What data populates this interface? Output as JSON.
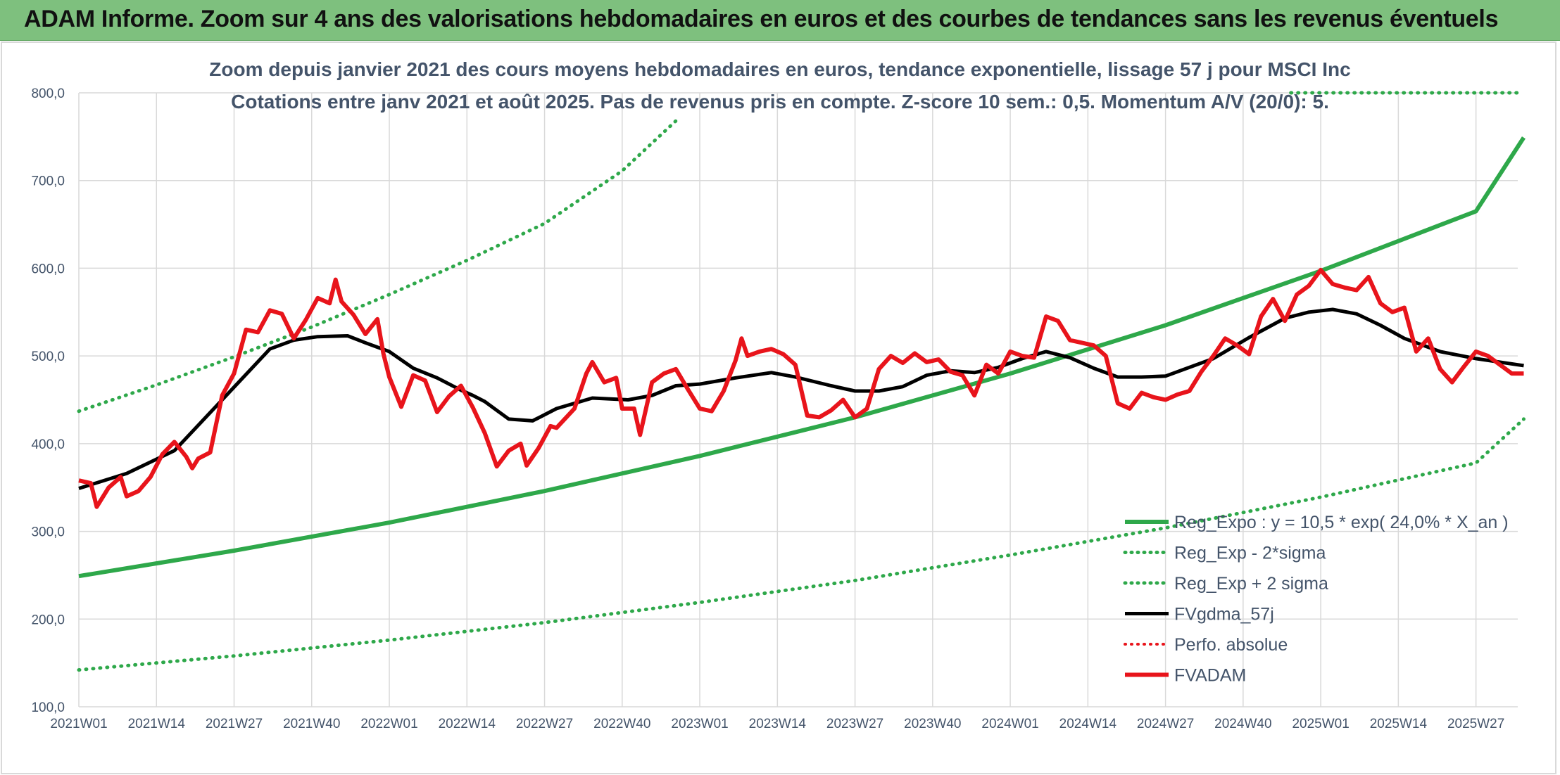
{
  "banner": {
    "title": "ADAM Informe. Zoom sur 4 ans des valorisations hebdomadaires en euros et des courbes de tendances sans les revenus éventuels"
  },
  "chart_data": {
    "type": "line",
    "title": "Zoom depuis janvier 2021 des cours moyens hebdomadaires en euros, tendance exponentielle, lissage 57 j pour MSCI Inc",
    "subtitle": "Cotations entre janv 2021 et août 2025. Pas de revenus pris en compte. Z-score 10 sem.: 0,5. Momentum A/V (20/0): 5.",
    "ylim": [
      100,
      800
    ],
    "y_ticks": [
      "800,0",
      "700,0",
      "600,0",
      "500,0",
      "400,0",
      "300,0",
      "200,0",
      "100,0"
    ],
    "x_ticks": [
      "2021W01",
      "2021W14",
      "2021W27",
      "2021W40",
      "2022W01",
      "2022W14",
      "2022W27",
      "2022W40",
      "2023W01",
      "2023W14",
      "2023W27",
      "2023W40",
      "2024W01",
      "2024W14",
      "2024W27",
      "2024W40",
      "2025W01",
      "2025W14",
      "2025W27"
    ],
    "legend_position": "bottom-right",
    "grid": true,
    "series": [
      {
        "name": "Reg_Expo : y = 10,5 * exp( 24,0% *  X_an )",
        "color": "#2ea84a",
        "style": "solid",
        "x": [
          0,
          26,
          52,
          78,
          104,
          130,
          156,
          182,
          208,
          234,
          242
        ],
        "y": [
          249,
          278,
          310,
          346,
          386,
          430,
          480,
          535,
          597,
          665,
          749
        ]
      },
      {
        "name": "Reg_Exp - 2*sigma",
        "color": "#2ea84a",
        "style": "dotted",
        "x": [
          0,
          26,
          52,
          78,
          104,
          130,
          156,
          182,
          208,
          234,
          242
        ],
        "y": [
          142,
          158,
          176,
          196,
          219,
          244,
          273,
          304,
          339,
          378,
          428
        ]
      },
      {
        "name": "Reg_Exp + 2 sigma",
        "color": "#2ea84a",
        "style": "dotted",
        "x": [
          0,
          13,
          26,
          39,
          52,
          65,
          78,
          91,
          100
        ],
        "y": [
          437,
          467,
          499,
          533,
          570,
          609,
          651,
          711,
          768
        ]
      },
      {
        "name": "FVgdma_57j",
        "color": "#000000",
        "style": "solid",
        "x": [
          0,
          8,
          16,
          24,
          32,
          36,
          40,
          45,
          48,
          52,
          56,
          60,
          64,
          66,
          68,
          70,
          72,
          76,
          80,
          86,
          92,
          96,
          100,
          104,
          110,
          116,
          120,
          126,
          130,
          134,
          138,
          142,
          146,
          150,
          154,
          158,
          162,
          166,
          170,
          174,
          178,
          182,
          190,
          196,
          202,
          206,
          210,
          214,
          218,
          222,
          228,
          234,
          242
        ],
        "y": [
          349,
          366,
          392,
          450,
          508,
          518,
          522,
          523,
          515,
          505,
          486,
          475,
          461,
          455,
          448,
          438,
          428,
          426,
          440,
          452,
          450,
          455,
          466,
          468,
          475,
          481,
          476,
          466,
          460,
          460,
          465,
          478,
          483,
          481,
          487,
          497,
          505,
          498,
          486,
          476,
          476,
          477,
          497,
          521,
          543,
          550,
          553,
          548,
          535,
          520,
          505,
          497,
          489
        ]
      },
      {
        "name": "Perfo. absolue",
        "color": "#e8141b",
        "style": "dotted",
        "x": [],
        "y": []
      },
      {
        "name": "FVADAM",
        "color": "#e8141b",
        "style": "solid",
        "x": [
          0,
          2,
          3,
          5,
          7,
          8,
          10,
          12,
          14,
          16,
          18,
          19,
          20,
          22,
          24,
          26,
          28,
          30,
          32,
          34,
          36,
          38,
          40,
          42,
          43,
          44,
          46,
          48,
          50,
          51,
          52,
          54,
          56,
          58,
          60,
          62,
          64,
          66,
          68,
          70,
          72,
          74,
          75,
          77,
          79,
          80,
          83,
          85,
          86,
          88,
          90,
          91,
          93,
          94,
          96,
          98,
          100,
          102,
          104,
          106,
          108,
          110,
          111,
          112,
          114,
          116,
          118,
          120,
          122,
          124,
          126,
          128,
          130,
          132,
          134,
          136,
          138,
          140,
          142,
          144,
          146,
          148,
          150,
          152,
          154,
          156,
          158,
          160,
          162,
          164,
          166,
          168,
          170,
          172,
          174,
          176,
          178,
          180,
          182,
          184,
          186,
          188,
          190,
          192,
          194,
          196,
          198,
          200,
          202,
          204,
          206,
          208,
          210,
          212,
          214,
          216,
          218,
          220,
          222,
          224,
          226,
          228,
          230,
          232,
          234,
          236,
          238,
          240,
          242
        ],
        "y": [
          358,
          355,
          328,
          350,
          362,
          340,
          346,
          362,
          388,
          402,
          385,
          372,
          383,
          390,
          455,
          480,
          530,
          527,
          552,
          548,
          520,
          541,
          566,
          560,
          587,
          562,
          547,
          525,
          542,
          503,
          476,
          442,
          478,
          472,
          436,
          454,
          466,
          441,
          412,
          374,
          392,
          400,
          375,
          395,
          420,
          418,
          440,
          480,
          493,
          470,
          475,
          440,
          440,
          410,
          470,
          480,
          485,
          462,
          440,
          437,
          460,
          495,
          520,
          500,
          505,
          508,
          502,
          490,
          432,
          430,
          438,
          450,
          430,
          440,
          485,
          500,
          492,
          503,
          493,
          496,
          482,
          478,
          455,
          490,
          480,
          505,
          500,
          498,
          545,
          540,
          518,
          515,
          512,
          500,
          446,
          440,
          458,
          453,
          450,
          456,
          460,
          482,
          500,
          520,
          512,
          502,
          545,
          565,
          540,
          570,
          580,
          598,
          582,
          578,
          575,
          590,
          560,
          550,
          555,
          505,
          520,
          485,
          470,
          488,
          505,
          500,
          490,
          480,
          480
        ]
      }
    ]
  }
}
